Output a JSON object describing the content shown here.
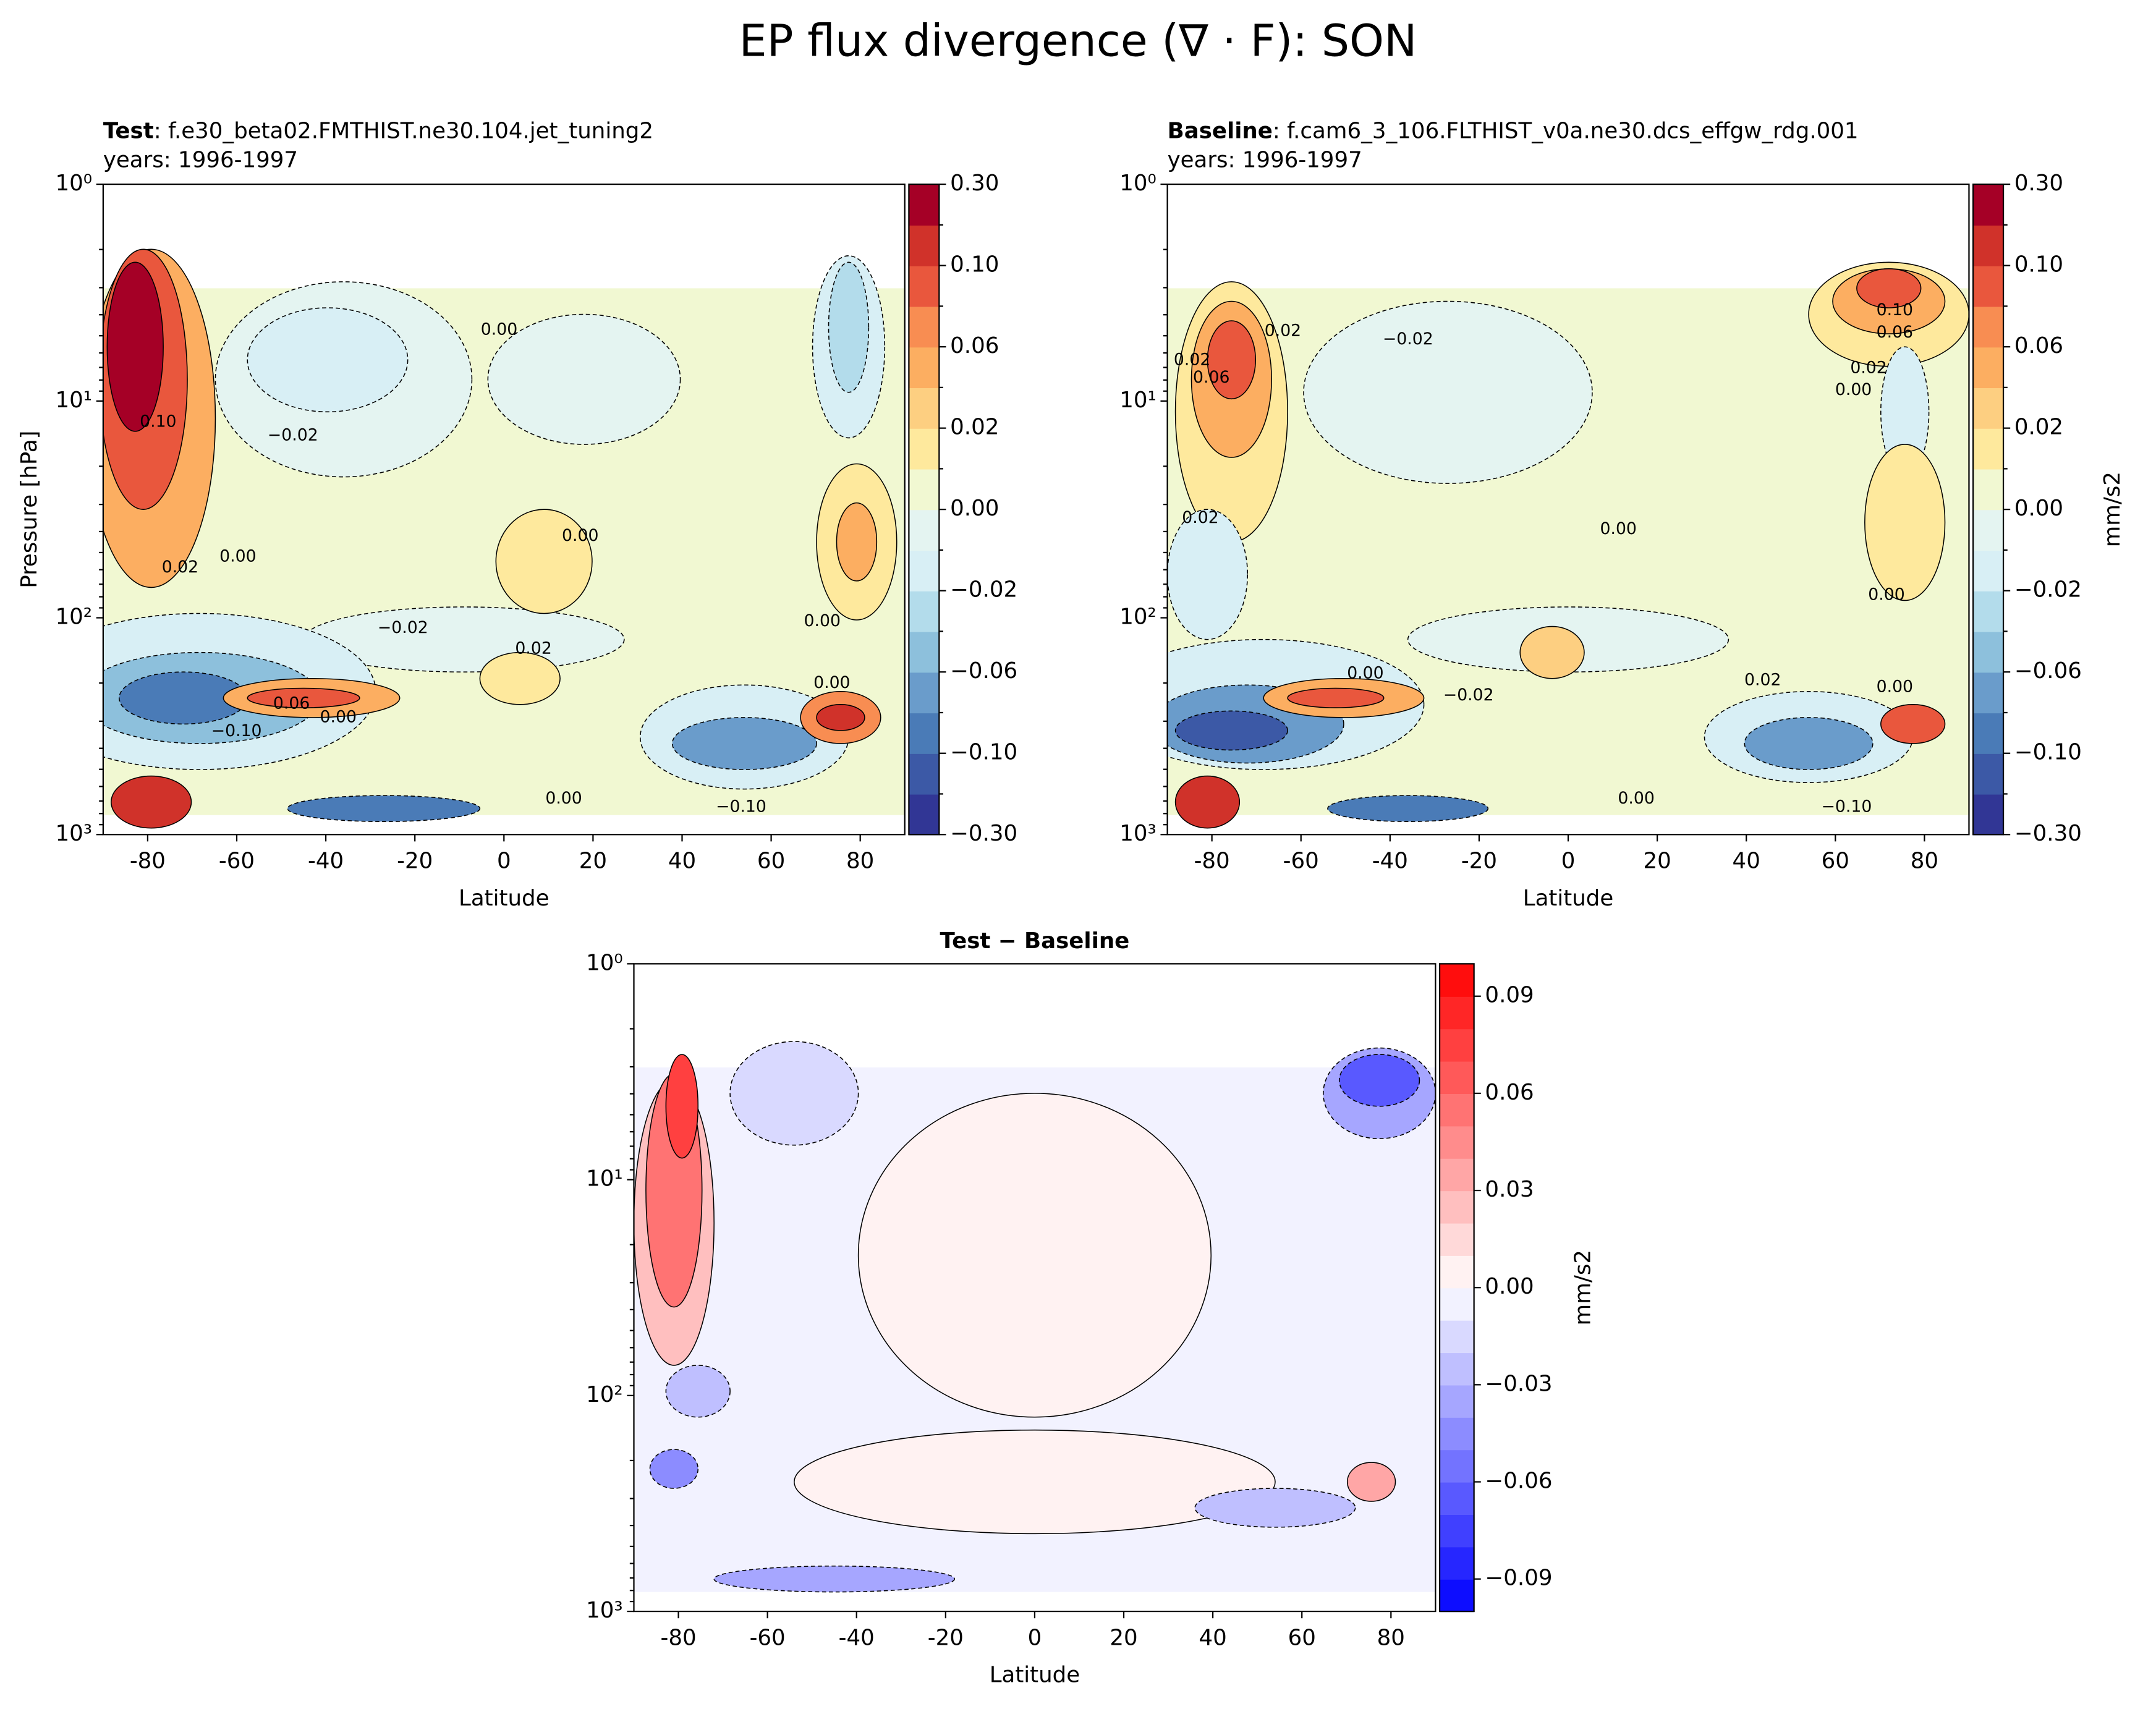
{
  "title": "EP flux divergence (∇ · F): SON",
  "chart_data": [
    {
      "type": "contour",
      "case": "Test",
      "case_name": ": f.e30_beta02.FMTHIST.ne30.104.jet_tuning2",
      "subtitle": "years: 1996-1997",
      "xlabel": "Latitude",
      "ylabel": "Pressure [hPa]",
      "yscale": "log",
      "xlim": [
        -90,
        90
      ],
      "xticks": [
        -80,
        -60,
        -40,
        -20,
        0,
        20,
        40,
        60,
        80
      ],
      "ylim": [
        1000,
        1
      ],
      "yticks": [
        {
          "value": 1,
          "label": "10⁰"
        },
        {
          "value": 10,
          "label": "10¹"
        },
        {
          "value": 100,
          "label": "10²"
        },
        {
          "value": 1000,
          "label": "10³"
        }
      ],
      "colorbar": {
        "scale": "boundary",
        "ticks": [
          {
            "value": -0.3,
            "label": "−0.30"
          },
          {
            "value": -0.1,
            "label": "−0.10"
          },
          {
            "value": -0.06,
            "label": "−0.06"
          },
          {
            "value": -0.02,
            "label": "−0.02"
          },
          {
            "value": 0,
            "label": "0.00"
          },
          {
            "value": 0.02,
            "label": "0.02"
          },
          {
            "value": 0.06,
            "label": "0.06"
          },
          {
            "value": 0.1,
            "label": "0.10"
          },
          {
            "value": 0.3,
            "label": "0.30"
          }
        ],
        "colors": [
          "#313695",
          "#3c59a6",
          "#4a7bb7",
          "#6a9ccb",
          "#8dc0dc",
          "#b3dceb",
          "#d8eff5",
          "#e4f4f1",
          "#f1f8d2",
          "#fee99d",
          "#fdcf81",
          "#fcae61",
          "#f88d52",
          "#e9573d",
          "#d0322a",
          "#a50026"
        ]
      },
      "contour_labels": [
        "0.00",
        "0.10",
        "−0.02",
        "0.00",
        "0.02",
        "0.00",
        "−0.02",
        "0.02",
        "0.00",
        "0.06",
        "0.00",
        "−0.10",
        "0.00",
        "−0.10",
        "0.00"
      ]
    },
    {
      "type": "contour",
      "case": "Baseline",
      "case_name": ": f.cam6_3_106.FLTHIST_v0a.ne30.dcs_effgw_rdg.001",
      "subtitle": "years: 1996-1997",
      "xlabel": "Latitude",
      "yscale": "log",
      "xlim": [
        -90,
        90
      ],
      "xticks": [
        -80,
        -60,
        -40,
        -20,
        0,
        20,
        40,
        60,
        80
      ],
      "ylim": [
        1000,
        1
      ],
      "yticks": [
        {
          "value": 1,
          "label": "10⁰"
        },
        {
          "value": 10,
          "label": "10¹"
        },
        {
          "value": 100,
          "label": "10²"
        },
        {
          "value": 1000,
          "label": "10³"
        }
      ],
      "colorbar": {
        "scale": "boundary",
        "label": "mm/s2",
        "ticks": [
          {
            "value": -0.3,
            "label": "−0.30"
          },
          {
            "value": -0.1,
            "label": "−0.10"
          },
          {
            "value": -0.06,
            "label": "−0.06"
          },
          {
            "value": -0.02,
            "label": "−0.02"
          },
          {
            "value": 0,
            "label": "0.00"
          },
          {
            "value": 0.02,
            "label": "0.02"
          },
          {
            "value": 0.06,
            "label": "0.06"
          },
          {
            "value": 0.1,
            "label": "0.10"
          },
          {
            "value": 0.3,
            "label": "0.30"
          }
        ],
        "colors": [
          "#313695",
          "#3c59a6",
          "#4a7bb7",
          "#6a9ccb",
          "#8dc0dc",
          "#b3dceb",
          "#d8eff5",
          "#e4f4f1",
          "#f1f8d2",
          "#fee99d",
          "#fdcf81",
          "#fcae61",
          "#f88d52",
          "#e9573d",
          "#d0322a",
          "#a50026"
        ]
      },
      "contour_labels": [
        "0.02",
        "−0.02",
        "0.10",
        "0.06",
        "0.02",
        "0.00",
        "0.06",
        "0.02",
        "0.02",
        "0.00",
        "0.00",
        "0.00",
        "0.02",
        "0.00",
        "0.00",
        "−0.10",
        "−0.02"
      ]
    },
    {
      "type": "contour",
      "case": "Test − Baseline",
      "xlabel": "Latitude",
      "yscale": "log",
      "xlim": [
        -90,
        90
      ],
      "xticks": [
        -80,
        -60,
        -40,
        -20,
        0,
        20,
        40,
        60,
        80
      ],
      "ylim": [
        1000,
        1
      ],
      "yticks": [
        {
          "value": 1,
          "label": "10⁰"
        },
        {
          "value": 10,
          "label": "10¹"
        },
        {
          "value": 100,
          "label": "10²"
        },
        {
          "value": 1000,
          "label": "10³"
        }
      ],
      "colorbar": {
        "scale": "linear",
        "label": "mm/s2",
        "clim": [
          -0.1,
          0.1
        ],
        "ticks": [
          {
            "value": -0.09,
            "label": "−0.09"
          },
          {
            "value": -0.06,
            "label": "−0.06"
          },
          {
            "value": -0.03,
            "label": "−0.03"
          },
          {
            "value": 0,
            "label": "0.00"
          },
          {
            "value": 0.03,
            "label": "0.03"
          },
          {
            "value": 0.06,
            "label": "0.06"
          },
          {
            "value": 0.09,
            "label": "0.09"
          }
        ],
        "colors": [
          "#0d0dff",
          "#2626ff",
          "#4040ff",
          "#5959ff",
          "#7373ff",
          "#8c8cff",
          "#a6a6ff",
          "#bfbfff",
          "#d9d9ff",
          "#f2f2ff",
          "#fff2f2",
          "#ffd9d9",
          "#ffbfbf",
          "#ffa6a6",
          "#ff8c8c",
          "#ff7373",
          "#ff5959",
          "#ff4040",
          "#ff2626",
          "#ff0d0d"
        ]
      }
    }
  ]
}
